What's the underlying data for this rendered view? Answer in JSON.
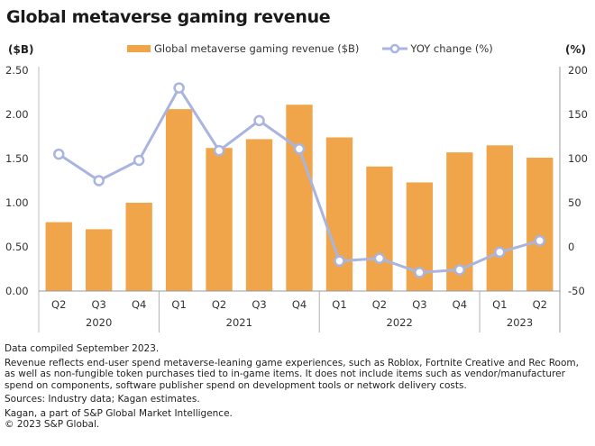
{
  "title": "Global metaverse gaming revenue",
  "left_axis_unit": "($B)",
  "right_axis_unit": "(%)",
  "legend": [
    {
      "label": "Global metaverse gaming revenue ($B)",
      "type": "bar",
      "color": "#f0a54a"
    },
    {
      "label": "YOY change (%)",
      "type": "line",
      "color": "#a9b4df"
    }
  ],
  "chart_data": {
    "type": "bar",
    "title": "Global metaverse gaming revenue",
    "categories": [
      "Q2",
      "Q3",
      "Q4",
      "Q1",
      "Q2",
      "Q3",
      "Q4",
      "Q1",
      "Q2",
      "Q3",
      "Q4",
      "Q1",
      "Q2"
    ],
    "groups": [
      {
        "label": "2020",
        "count": 3
      },
      {
        "label": "2021",
        "count": 4
      },
      {
        "label": "2022",
        "count": 4
      },
      {
        "label": "2023",
        "count": 2
      }
    ],
    "series": [
      {
        "name": "Global metaverse gaming revenue ($B)",
        "type": "bar",
        "axis": "left",
        "color": "#f0a54a",
        "values": [
          0.78,
          0.7,
          1.0,
          2.06,
          1.62,
          1.72,
          2.11,
          1.74,
          1.41,
          1.23,
          1.57,
          1.65,
          1.51
        ]
      },
      {
        "name": "YOY change (%)",
        "type": "line",
        "axis": "right",
        "color": "#a9b4df",
        "values": [
          105,
          75,
          98,
          180,
          109,
          143,
          111,
          -16,
          -13,
          -29,
          -26,
          -6,
          7
        ]
      }
    ],
    "ylabel": "($B)",
    "y2label": "(%)",
    "ylim": [
      0,
      2.5
    ],
    "y2lim": [
      -50,
      200
    ],
    "yticks": [
      "0.00",
      "0.50",
      "1.00",
      "1.50",
      "2.00",
      "2.50"
    ],
    "y2ticks": [
      "-50",
      "0",
      "50",
      "100",
      "150",
      "200"
    ],
    "grid": false,
    "legend_position": "top-center"
  },
  "footer": {
    "compiled": "Data compiled September 2023.",
    "note": "Revenue reflects end-user spend metaverse-leaning game experiences, such as Roblox, Fortnite Creative and Rec Room, as well as non-fungible token purchases tied to in-game items. It does not include items such as vendor/manufacturer spend on components, software publisher spend on development tools or network delivery costs.",
    "sources": "Sources: Industry data; Kagan estimates.",
    "kagan": "Kagan, a part of S&P Global Market Intelligence.",
    "copyright": "© 2023 S&P Global."
  }
}
